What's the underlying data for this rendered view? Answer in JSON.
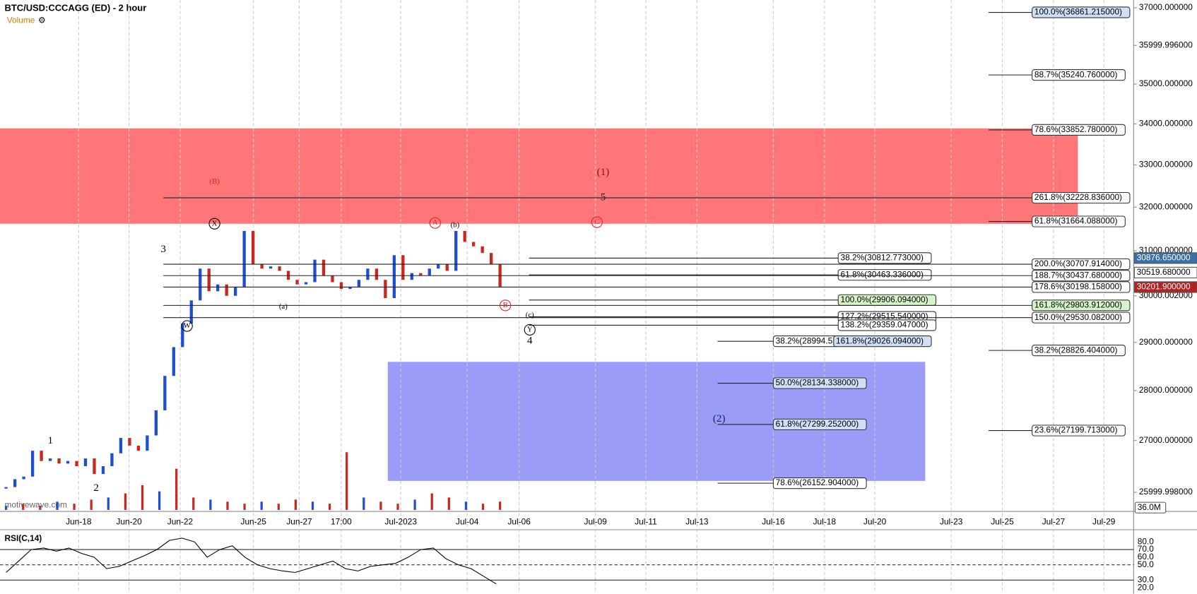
{
  "header": {
    "title": "BTC/USD:CCCAGG (ED) - 2 hour",
    "volume_label": "Volume",
    "watermark": "motivewave.com"
  },
  "chart_data": {
    "type": "candle",
    "log_scale": true,
    "ylim": [
      25670,
      37205
    ],
    "yticks": [
      {
        "value": 37000,
        "label": "37000.000000"
      },
      {
        "value": 36000,
        "label": "35999.996000"
      },
      {
        "value": 35000,
        "label": "35000.000000"
      },
      {
        "value": 34000,
        "label": "34000.000000"
      },
      {
        "value": 33000,
        "label": "33000.000000"
      },
      {
        "value": 32000,
        "label": "32000.000000"
      },
      {
        "value": 31000,
        "label": "31000.000000"
      },
      {
        "value": 30000,
        "label": "30000.002000"
      },
      {
        "value": 29000,
        "label": "29000.000000"
      },
      {
        "value": 28000,
        "label": "28000.000000"
      },
      {
        "value": 27000,
        "label": "27000.000000"
      },
      {
        "value": 26000,
        "label": "25999.998000"
      }
    ],
    "x_tick_labels": [
      "Jun-18",
      "Jun-20",
      "Jun-22",
      "Jun-25",
      "Jun-27",
      "17:00",
      "Jul-2023",
      "Jul-04",
      "Jul-06",
      "Jul-09",
      "Jul-11",
      "Jul-13",
      "Jul-16",
      "Jul-18",
      "Jul-20",
      "Jul-23",
      "Jul-25",
      "Jul-27",
      "Jul-29"
    ],
    "up_color": "#1f4fd1",
    "down_color": "#c8281e",
    "values": [
      26100,
      26250,
      26300,
      26800,
      26600,
      26650,
      26550,
      26600,
      26500,
      26650,
      26350,
      26500,
      26750,
      27050,
      26900,
      26800,
      27100,
      27600,
      28300,
      28900,
      29400,
      29900,
      30600,
      30100,
      30250,
      30000,
      30200,
      31450,
      30700,
      30600,
      30650,
      30550,
      30350,
      30250,
      30300,
      30800,
      30450,
      30300,
      30150,
      30200,
      30350,
      30600,
      30350,
      29950,
      30900,
      30350,
      30500,
      30450,
      30600,
      30700,
      30550,
      31450,
      31200,
      31100,
      30950,
      30700,
      30200
    ],
    "volume": {
      "axis_label": "36.0M",
      "values": [
        2,
        3,
        2,
        4,
        3,
        5,
        6,
        8,
        12,
        9,
        20,
        6,
        5,
        4,
        3,
        4,
        3,
        5,
        4,
        3,
        28,
        6,
        4,
        3,
        5,
        8,
        6,
        4,
        3,
        4
      ]
    },
    "price_tags": [
      "30876.650000",
      "30519.680000",
      "30201.900000"
    ],
    "fib_labels": [
      "100.0%(36861.215000)",
      "88.7%(35240.760000)",
      "78.6%(33852.780000)",
      "261.8%(32228.836000)",
      "61.8%(31664.088000)",
      "38.2%(30812.773000)",
      "200.0%(30707.914000)",
      "61.8%(30463.336000)",
      "188.7%(30437.680000)",
      "178.6%(30198.158000)",
      "100.0%(29906.094000)",
      "161.8%(29803.912000)",
      "127.2%(29515.540000)",
      "150.0%(29530.082000)",
      "138.2%(29359.047000)",
      "38.2%(28994.5",
      "161.8%(29026.094000)",
      "38.2%(28826.404000)",
      "50.0%(28134.338000)",
      "61.8%(27299.252000)",
      "23.6%(27199.713000)",
      "78.6%(26152.904000)"
    ],
    "wave_labels": [
      "1",
      "2",
      "3",
      "(B)",
      "X",
      "W",
      "(a)",
      "A",
      "(b)",
      "B",
      "(c)",
      "Y",
      "4",
      "5",
      "(1)",
      "C",
      "(2)"
    ]
  },
  "rsi": {
    "title": "RSI(C,14)",
    "ylim": [
      17,
      95
    ],
    "yticks": [
      {
        "value": 80,
        "label": "80.0"
      },
      {
        "value": 70,
        "label": "70.0"
      },
      {
        "value": 60,
        "label": "60.0"
      },
      {
        "value": 50,
        "label": "50.0"
      },
      {
        "value": 30,
        "label": "30.0"
      },
      {
        "value": 20,
        "label": "20.0"
      }
    ],
    "values": [
      40,
      55,
      70,
      72,
      68,
      72,
      65,
      60,
      45,
      48,
      55,
      62,
      70,
      82,
      85,
      80,
      60,
      70,
      75,
      60,
      50,
      45,
      42,
      40,
      45,
      50,
      55,
      45,
      42,
      48,
      50,
      52,
      60,
      70,
      72,
      58,
      50,
      45,
      35,
      25
    ]
  }
}
